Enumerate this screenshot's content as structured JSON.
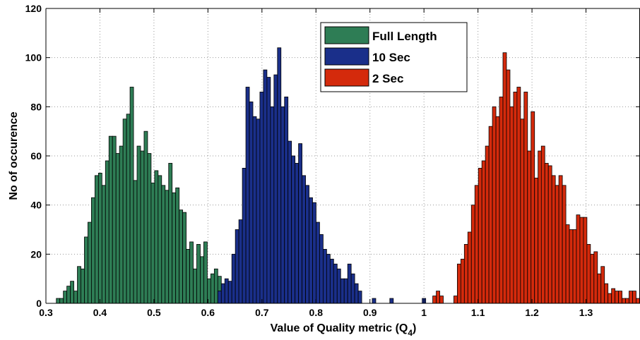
{
  "chart_data": {
    "type": "bar",
    "xlabel": "Value of Quality metric (Q",
    "xlabel_subscript": "4",
    "xlabel_close": ")",
    "ylabel": "No of occurence",
    "xlim": [
      0.3,
      1.4
    ],
    "ylim": [
      0,
      120
    ],
    "xticks": [
      "0.3",
      "0.4",
      "0.5",
      "0.6",
      "0.7",
      "0.8",
      "0.9",
      "1",
      "1.1",
      "1.2",
      "1.3"
    ],
    "yticks": [
      "0",
      "20",
      "40",
      "60",
      "80",
      "100",
      "120"
    ],
    "grid": true,
    "legend_position": "top-center",
    "bin_width": 0.0065,
    "series": [
      {
        "name": "Full Length",
        "color": "#2e7d55",
        "x": [
          0.3225,
          0.329,
          0.3355,
          0.342,
          0.3485,
          0.355,
          0.3615,
          0.368,
          0.3745,
          0.381,
          0.3875,
          0.394,
          0.4005,
          0.407,
          0.4135,
          0.42,
          0.4265,
          0.433,
          0.4395,
          0.446,
          0.4525,
          0.459,
          0.4655,
          0.472,
          0.4785,
          0.485,
          0.4915,
          0.498,
          0.5045,
          0.511,
          0.5175,
          0.524,
          0.5305,
          0.537,
          0.5435,
          0.55,
          0.5565,
          0.563,
          0.5695,
          0.576,
          0.5825,
          0.589,
          0.5955,
          0.602,
          0.6085,
          0.615,
          0.6215
        ],
        "values": [
          2,
          2,
          5,
          7,
          9,
          5,
          15,
          14,
          27,
          33,
          43,
          52,
          53,
          48,
          58,
          68,
          68,
          61,
          64,
          75,
          77,
          88,
          50,
          64,
          62,
          70,
          61,
          49,
          54,
          52,
          48,
          46,
          57,
          45,
          47,
          38,
          37,
          22,
          25,
          14,
          24,
          19,
          25,
          10,
          12,
          14,
          11
        ]
      },
      {
        "name": "10 Sec",
        "color": "#1a2f8a",
        "x": [
          0.6215,
          0.628,
          0.6345,
          0.641,
          0.6475,
          0.654,
          0.6605,
          0.667,
          0.6735,
          0.68,
          0.6865,
          0.693,
          0.6995,
          0.706,
          0.7125,
          0.719,
          0.7255,
          0.732,
          0.7385,
          0.745,
          0.7515,
          0.758,
          0.7645,
          0.771,
          0.7775,
          0.784,
          0.7905,
          0.797,
          0.8035,
          0.81,
          0.8165,
          0.823,
          0.8295,
          0.836,
          0.8425,
          0.849,
          0.8555,
          0.862,
          0.8685,
          0.875,
          0.8815,
          0.9075,
          0.94,
          1.0
        ],
        "values": [
          5,
          8,
          10,
          9,
          20,
          30,
          34,
          55,
          88,
          82,
          76,
          75,
          86,
          95,
          92,
          80,
          93,
          104,
          80,
          84,
          66,
          60,
          57,
          65,
          52,
          48,
          43,
          41,
          33,
          28,
          22,
          20,
          18,
          16,
          14,
          10,
          10,
          16,
          12,
          8,
          5,
          2,
          2,
          2
        ]
      },
      {
        "name": "2 Sec",
        "color": "#d42a0c",
        "x": [
          1.0195,
          1.026,
          1.0325,
          1.0585,
          1.065,
          1.0715,
          1.078,
          1.0845,
          1.091,
          1.0975,
          1.104,
          1.1105,
          1.117,
          1.1235,
          1.13,
          1.1365,
          1.143,
          1.1495,
          1.156,
          1.1625,
          1.169,
          1.1755,
          1.182,
          1.1885,
          1.195,
          1.2015,
          1.208,
          1.2145,
          1.2205,
          1.227,
          1.2335,
          1.24,
          1.2465,
          1.253,
          1.2595,
          1.266,
          1.2725,
          1.279,
          1.2855,
          1.292,
          1.2985,
          1.305,
          1.3115,
          1.318,
          1.3245,
          1.331,
          1.3375,
          1.344,
          1.3505,
          1.357,
          1.3635,
          1.37,
          1.3765,
          1.383,
          1.3895,
          1.396
        ],
        "values": [
          3,
          5,
          3,
          3,
          16,
          18,
          24,
          29,
          40,
          48,
          55,
          58,
          64,
          72,
          80,
          76,
          84,
          102,
          95,
          80,
          86,
          88,
          75,
          86,
          62,
          78,
          51,
          62,
          64,
          57,
          56,
          52,
          48,
          52,
          48,
          32,
          30,
          30,
          36,
          35,
          35,
          24,
          20,
          21,
          12,
          15,
          8,
          4,
          6,
          5,
          5,
          2,
          2,
          5,
          5,
          2
        ]
      }
    ]
  }
}
